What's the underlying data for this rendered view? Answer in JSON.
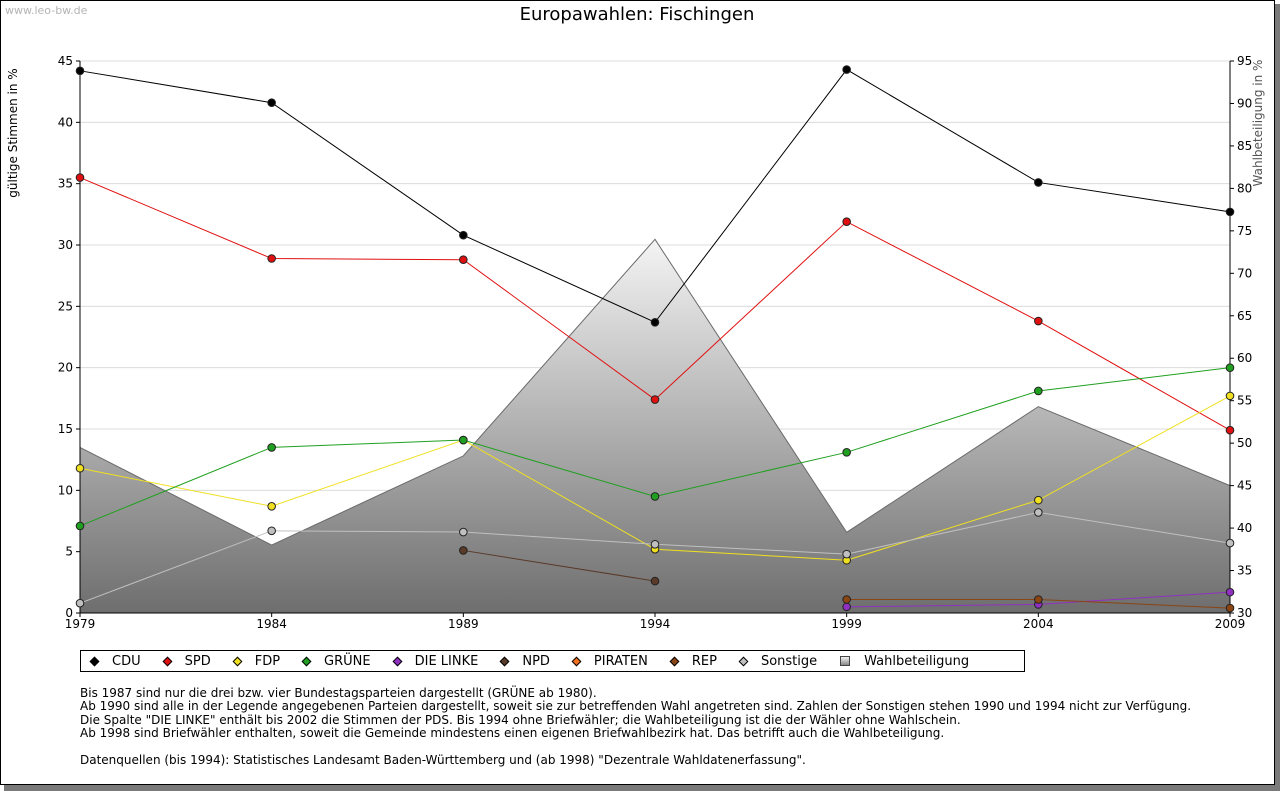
{
  "watermark": "www.leo-bw.de",
  "chart_data": {
    "type": "line",
    "title": "Europawahlen: Fischingen",
    "ylabel": "gültige Stimmen in %",
    "y2label": "Wahlbeteiligung in %",
    "categories": [
      "1979",
      "1984",
      "1989",
      "1994",
      "1999",
      "2004",
      "2009"
    ],
    "ylim": [
      0,
      45
    ],
    "y2lim": [
      30,
      95
    ],
    "yticks": [
      "0",
      "5",
      "10",
      "15",
      "20",
      "25",
      "30",
      "35",
      "40",
      "45"
    ],
    "y2ticks": [
      "30",
      "35",
      "40",
      "45",
      "50",
      "55",
      "60",
      "65",
      "70",
      "75",
      "80",
      "85",
      "90",
      "95"
    ],
    "series": [
      {
        "name": "CDU",
        "color": "#000000",
        "values": [
          44.2,
          41.6,
          30.8,
          23.7,
          44.3,
          35.1,
          32.7
        ]
      },
      {
        "name": "SPD",
        "color": "#e01010",
        "values": [
          35.5,
          28.9,
          28.8,
          17.4,
          31.9,
          23.8,
          14.9
        ]
      },
      {
        "name": "FDP",
        "color": "#f0e020",
        "values": [
          11.8,
          8.7,
          14.1,
          5.2,
          4.3,
          9.2,
          17.7
        ]
      },
      {
        "name": "GRÜNE",
        "color": "#20a020",
        "values": [
          7.1,
          13.5,
          14.1,
          9.5,
          13.1,
          18.1,
          20.0
        ]
      },
      {
        "name": "DIE LINKE",
        "color": "#9030c0",
        "values": [
          null,
          null,
          null,
          null,
          0.5,
          0.7,
          1.7
        ]
      },
      {
        "name": "NPD",
        "color": "#5a3a28",
        "values": [
          null,
          null,
          5.1,
          2.6,
          null,
          null,
          null
        ]
      },
      {
        "name": "PIRATEN",
        "color": "#f07020",
        "values": [
          null,
          null,
          null,
          null,
          null,
          null,
          null
        ]
      },
      {
        "name": "REP",
        "color": "#8b4513",
        "values": [
          null,
          null,
          null,
          null,
          1.1,
          1.1,
          0.4
        ]
      },
      {
        "name": "Sonstige",
        "color": "#c0c0c0",
        "values": [
          0.8,
          6.7,
          6.6,
          5.6,
          4.8,
          8.2,
          5.7
        ]
      }
    ],
    "turnout": {
      "name": "Wahlbeteiligung",
      "values": [
        49.5,
        38.0,
        48.5,
        74.0,
        39.5,
        54.3,
        45.0
      ]
    },
    "legend_position": "bottom"
  },
  "notes": [
    "Bis 1987 sind nur die drei bzw. vier Bundestagsparteien dargestellt (GRÜNE ab 1980).",
    "Ab 1990 sind alle in der Legende angegebenen Parteien dargestellt, soweit sie zur betreffenden Wahl angetreten sind. Zahlen der Sonstigen stehen 1990 und 1994 nicht zur Verfügung.",
    "Die Spalte \"DIE LINKE\" enthält bis 2002 die Stimmen der PDS. Bis 1994 ohne Briefwähler; die Wahlbeteiligung ist die der Wähler ohne Wahlschein.",
    "Ab 1998 sind Briefwähler enthalten, soweit die Gemeinde mindestens einen eigenen Briefwahlbezirk hat. Das betrifft auch die Wahlbeteiligung."
  ],
  "source": "Datenquellen (bis 1994): Statistisches Landesamt Baden-Württemberg und (ab 1998) \"Dezentrale Wahldatenerfassung\"."
}
